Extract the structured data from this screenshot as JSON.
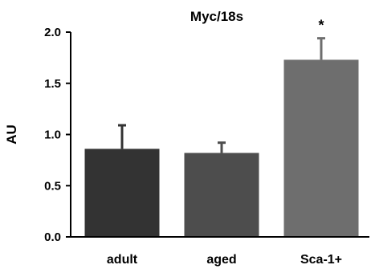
{
  "chart_data": {
    "type": "bar",
    "title": "Myc/18s",
    "xlabel": "",
    "ylabel": "AU",
    "ylim": [
      0,
      2.0
    ],
    "yticks": [
      "0.0",
      "0.5",
      "1.0",
      "1.5",
      "2.0"
    ],
    "categories": [
      "adult",
      "aged",
      "Sca-1+"
    ],
    "values": [
      0.86,
      0.82,
      1.73
    ],
    "errors": [
      0.23,
      0.1,
      0.21
    ],
    "significance": [
      "",
      "",
      "*"
    ],
    "colors": [
      "#333333",
      "#4d4d4d",
      "#6e6e6e"
    ],
    "grid": false
  }
}
